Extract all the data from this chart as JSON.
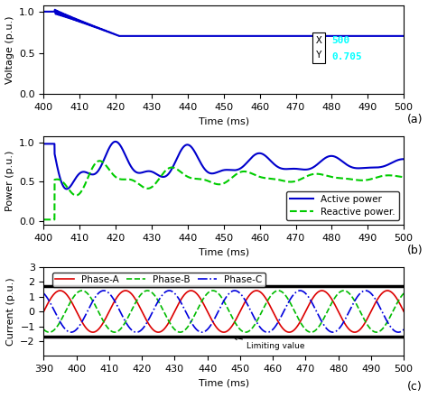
{
  "voltage_xlim": [
    400,
    500
  ],
  "voltage_ylim": [
    0,
    1.08
  ],
  "voltage_yticks": [
    0,
    0.5,
    1
  ],
  "voltage_ylabel": "Voltage (p.u.)",
  "voltage_xlabel": "Time (ms)",
  "voltage_panel_label": "(a)",
  "voltage_color": "#0000cc",
  "power_xlim": [
    400,
    500
  ],
  "power_ylim": [
    -0.05,
    1.08
  ],
  "power_yticks": [
    0,
    0.5,
    1
  ],
  "power_ylabel": "Power (p.u.)",
  "power_xlabel": "Time (ms)",
  "power_panel_label": "(b)",
  "active_color": "#0000cc",
  "reactive_color": "#00cc00",
  "current_xlim": [
    390,
    500
  ],
  "current_ylim": [
    -3,
    3
  ],
  "current_yticks": [
    -2,
    -1,
    0,
    1,
    2,
    3
  ],
  "current_ylabel": "Current (p.u.)",
  "current_xlabel": "Time (ms)",
  "current_panel_label": "(c)",
  "phaseA_color": "#dd0000",
  "phaseB_color": "#00bb00",
  "phaseC_color": "#0000dd",
  "limit_value": 1.7,
  "limit_color": "#000000"
}
